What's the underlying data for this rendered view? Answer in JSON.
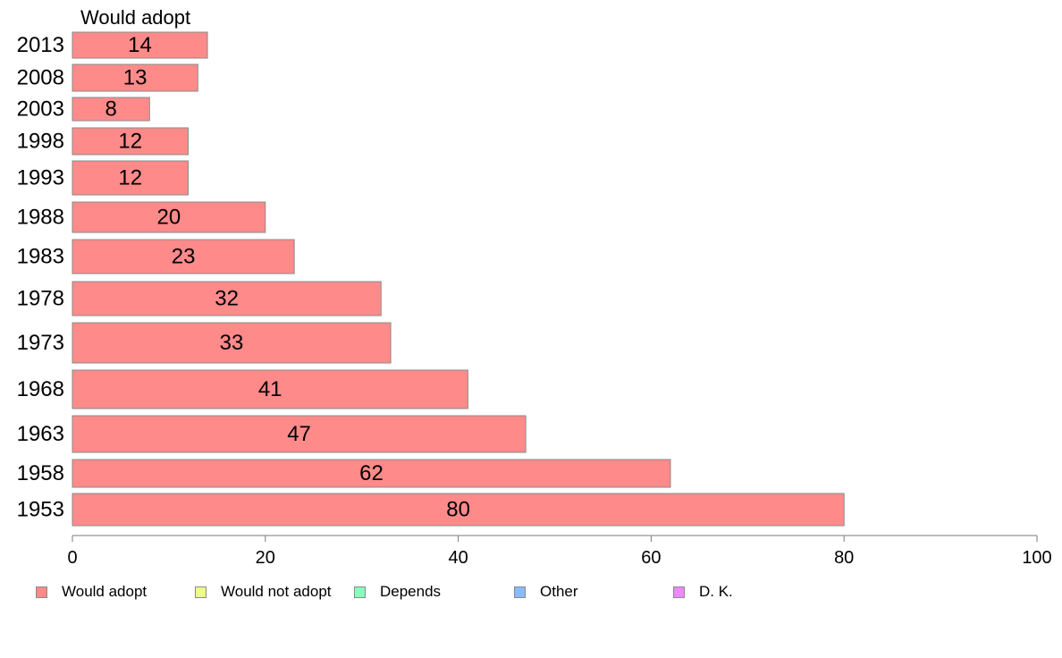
{
  "chart_data": {
    "type": "bar",
    "orientation": "horizontal",
    "title": "Would adopt",
    "categories": [
      "2013",
      "2008",
      "2003",
      "1998",
      "1993",
      "1988",
      "1983",
      "1978",
      "1973",
      "1968",
      "1963",
      "1958",
      "1953"
    ],
    "series": [
      {
        "name": "Would adopt",
        "color": "#ff8a8a",
        "values": [
          14,
          13,
          8,
          12,
          12,
          20,
          23,
          32,
          33,
          41,
          47,
          62,
          80
        ]
      }
    ],
    "xlim": [
      0,
      100
    ],
    "xticks": [
      0,
      20,
      40,
      60,
      80,
      100
    ],
    "grid": false,
    "legend_position": "bottom",
    "legend": [
      {
        "name": "Would adopt",
        "color": "#ff8a8a"
      },
      {
        "name": "Would not adopt",
        "color": "#eeff88"
      },
      {
        "name": "Depends",
        "color": "#88ffbb"
      },
      {
        "name": "Other",
        "color": "#88bbff"
      },
      {
        "name": "D. K.",
        "color": "#ee88ff"
      }
    ]
  }
}
